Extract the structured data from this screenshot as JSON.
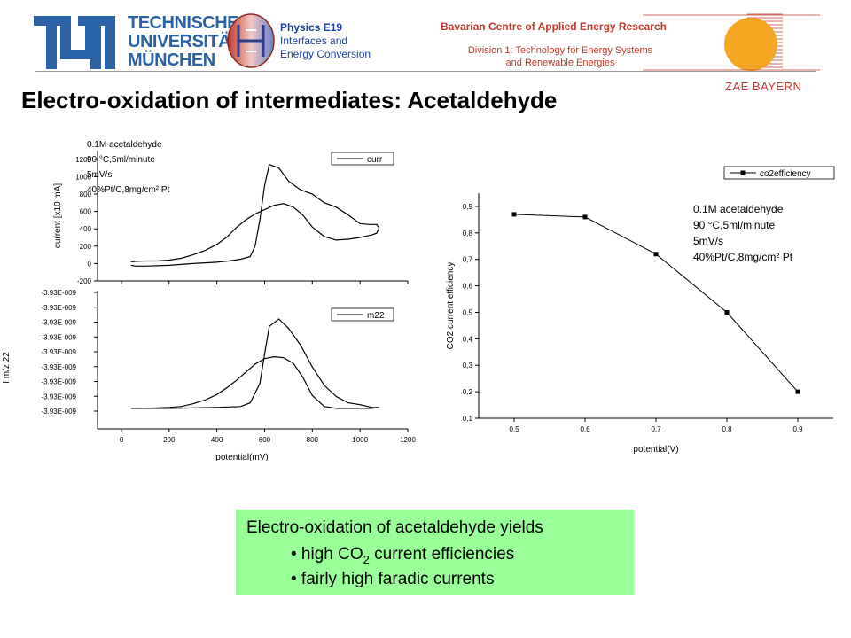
{
  "header": {
    "university_lines": [
      "TECHNISCHE",
      "UNIVERSITÄT",
      "MÜNCHEN"
    ],
    "dept_title": "Physics E19",
    "dept_lines": [
      "Interfaces and",
      "Energy Conversion"
    ],
    "center_title": "Bavarian Centre of Applied Energy Research",
    "center_division": "Division 1: Technology for Energy Systems",
    "center_division_2": "and Renewable Energies",
    "zae_name": "ZAE BAYERN",
    "accent_blue": "#2a62a8",
    "accent_red": "#c0392b"
  },
  "title": "Electro-oxidation of intermediates: Acetaldehyde",
  "callout": {
    "line1": "Electro-oxidation of acetaldehyde yields",
    "bullet1_pre": "• high CO",
    "bullet1_sub": "2",
    "bullet1_post": " current efficiencies",
    "bullet2": "• fairly high faradic currents",
    "bg_color": "#99ff99"
  },
  "chart_data": [
    {
      "type": "line",
      "panel": "current",
      "ylabel": "current [x10 mA]",
      "xlim": [
        -100,
        1200
      ],
      "ylim": [
        -200,
        1300
      ],
      "xticks": [
        "0",
        "200",
        "400",
        "600",
        "800",
        "1000",
        "1200"
      ],
      "yticks": [
        "-200",
        "0",
        "200",
        "400",
        "600",
        "800",
        "1000",
        "1200"
      ],
      "legend": "curr",
      "annotations": [
        "0.1M acetaldehyde",
        "90 °C,5ml/minute",
        "5mV/s",
        "40%Pt/C,8mg/cm² Pt"
      ],
      "series": [
        {
          "name": "curr",
          "x": [
            40,
            60,
            100,
            200,
            300,
            400,
            450,
            500,
            540,
            560,
            580,
            600,
            620,
            660,
            700,
            750,
            800,
            850,
            900,
            950,
            1000,
            1040,
            1070,
            1080,
            1075,
            1070,
            1050,
            1000,
            950,
            900,
            850,
            800,
            760,
            720,
            680,
            640,
            600,
            560,
            520,
            480,
            440,
            400,
            350,
            300,
            250,
            200,
            150,
            100,
            60,
            40
          ],
          "y": [
            -20,
            -30,
            -30,
            -20,
            0,
            15,
            30,
            50,
            80,
            200,
            500,
            900,
            1140,
            1100,
            950,
            850,
            800,
            700,
            650,
            560,
            460,
            450,
            450,
            410,
            380,
            350,
            330,
            300,
            280,
            270,
            310,
            420,
            560,
            650,
            690,
            670,
            620,
            570,
            500,
            410,
            300,
            220,
            150,
            100,
            60,
            40,
            30,
            30,
            25,
            20
          ]
        }
      ]
    },
    {
      "type": "line",
      "panel": "ms",
      "ylabel": "I m/z 22",
      "xlabel": "potential(mV)",
      "xlim": [
        -100,
        1200
      ],
      "xticks": [
        "0",
        "200",
        "400",
        "600",
        "800",
        "1000",
        "1200"
      ],
      "yticks": [
        "-3.93E-009",
        "-3.93E-009",
        "-3.93E-009",
        "-3.93E-009",
        "-3.93E-009",
        "-3.93E-009",
        "-3.93E-009",
        "-3.93E-009",
        "-3.93E-009"
      ],
      "legend": "m22",
      "series": [
        {
          "name": "m22",
          "x": [
            40,
            100,
            200,
            300,
            400,
            450,
            500,
            540,
            580,
            600,
            620,
            660,
            700,
            750,
            800,
            850,
            900,
            950,
            1000,
            1050,
            1080,
            1050,
            1000,
            950,
            900,
            850,
            800,
            760,
            720,
            680,
            640,
            600,
            560,
            520,
            480,
            440,
            400,
            350,
            300,
            250,
            200,
            150,
            100,
            60,
            40
          ],
          "y": [
            0.03,
            0.03,
            0.03,
            0.035,
            0.04,
            0.045,
            0.05,
            0.09,
            0.3,
            0.62,
            0.92,
            1.0,
            0.9,
            0.72,
            0.48,
            0.28,
            0.16,
            0.09,
            0.07,
            0.04,
            0.04,
            0.03,
            0.03,
            0.03,
            0.03,
            0.05,
            0.17,
            0.37,
            0.52,
            0.58,
            0.59,
            0.57,
            0.51,
            0.42,
            0.33,
            0.25,
            0.18,
            0.12,
            0.08,
            0.05,
            0.04,
            0.035,
            0.03,
            0.03,
            0.03
          ]
        }
      ]
    },
    {
      "type": "line",
      "panel": "efficiency",
      "ylabel": "CO2 current efficiency",
      "xlabel": "potential(V)",
      "xlim": [
        0.45,
        0.95
      ],
      "ylim": [
        0.1,
        0.95
      ],
      "xticks": [
        "0,5",
        "0,6",
        "0,7",
        "0,8",
        "0,9"
      ],
      "yticks": [
        "0,1",
        "0,2",
        "0,3",
        "0,4",
        "0,5",
        "0,6",
        "0,7",
        "0,8",
        "0,9"
      ],
      "legend": "co2efficiency",
      "annotations": [
        "0.1M acetaldehyde",
        "90 °C,5ml/minute",
        "5mV/s",
        "40%Pt/C,8mg/cm² Pt"
      ],
      "series": [
        {
          "name": "co2efficiency",
          "x": [
            0.5,
            0.6,
            0.7,
            0.8,
            0.9
          ],
          "y": [
            0.87,
            0.86,
            0.72,
            0.5,
            0.2
          ]
        }
      ]
    }
  ]
}
